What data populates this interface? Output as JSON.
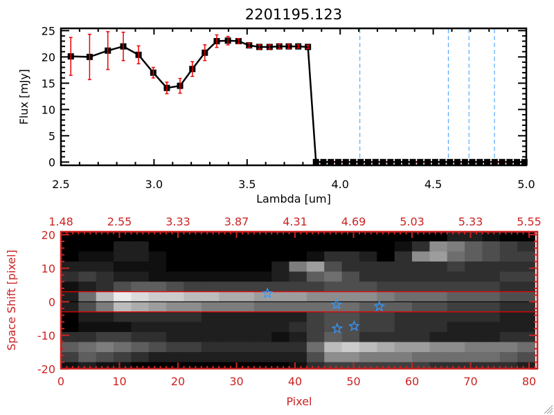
{
  "chart_data": [
    {
      "type": "line",
      "title": "2201195.123",
      "xlabel": "Lambda [um]",
      "ylabel": "Flux [mJy]",
      "xlim": [
        2.5,
        5.0
      ],
      "ylim": [
        -0.6,
        25.5
      ],
      "xticks": [
        "2.5",
        "3.0",
        "3.5",
        "4.0",
        "4.5",
        "5.0"
      ],
      "yticks": [
        "0",
        "5",
        "10",
        "15",
        "20",
        "25"
      ],
      "grid": false,
      "line_color": "#000000",
      "errorbar_color": "#ee0000",
      "series": [
        {
          "x": [
            2.553,
            2.654,
            2.752,
            2.835,
            2.917,
            2.996,
            3.069,
            3.14,
            3.206,
            3.273,
            3.337,
            3.397,
            3.454,
            3.511,
            3.566,
            3.621,
            3.673,
            3.724,
            3.775,
            3.827,
            3.87,
            3.91,
            3.95,
            3.99,
            4.03,
            4.07,
            4.11,
            4.15,
            4.19,
            4.23,
            4.27,
            4.31,
            4.35,
            4.39,
            4.43,
            4.47,
            4.51,
            4.55,
            4.59,
            4.63,
            4.67,
            4.71,
            4.75,
            4.79,
            4.83,
            4.87,
            4.91,
            4.95,
            4.99
          ],
          "y": [
            20.1,
            20.0,
            21.2,
            22.0,
            20.4,
            17.0,
            14.1,
            14.5,
            17.7,
            20.8,
            23.0,
            23.1,
            23.0,
            22.2,
            21.9,
            21.9,
            22.0,
            22.0,
            22.0,
            21.9,
            0,
            0,
            0,
            0,
            0,
            0,
            0,
            0,
            0,
            0,
            0,
            0,
            0,
            0,
            0,
            0,
            0,
            0,
            0,
            0,
            0,
            0,
            0,
            0,
            0,
            0,
            0,
            0,
            0
          ],
          "yerr": [
            3.6,
            4.3,
            3.6,
            2.7,
            1.7,
            1.0,
            1.1,
            1.4,
            1.4,
            1.5,
            1.2,
            0.8,
            0.5,
            0.4,
            0.4,
            0.4,
            0.4,
            0.4,
            0.3,
            0.3,
            0.1,
            0.1,
            0.1,
            0.1,
            0.1,
            0.1,
            0.1,
            0.1,
            0.1,
            0.1,
            0.1,
            0.1,
            0.1,
            0.1,
            0.1,
            0.1,
            0.1,
            0.1,
            0.1,
            0.1,
            0.1,
            0.1,
            0.1,
            0.1,
            0.1,
            0.1,
            0.1,
            0.1,
            0.1
          ]
        }
      ],
      "vlines": [
        4.106,
        4.581,
        4.692,
        4.829
      ],
      "vline_color": "#3399ff",
      "hline_dashed": {
        "y": 0,
        "from": 3.87,
        "to": 5.0,
        "color": "#ee0000"
      }
    },
    {
      "type": "heatmap",
      "xlabel": "Pixel",
      "ylabel": "Space Shift [pixel]",
      "xlim": [
        0,
        81.4
      ],
      "ylim": [
        -20,
        20.9
      ],
      "xticks": [
        "0",
        "10",
        "20",
        "30",
        "40",
        "50",
        "60",
        "70",
        "80"
      ],
      "top_xticks": [
        "1.48",
        "2.55",
        "3.33",
        "3.87",
        "4.31",
        "4.69",
        "5.03",
        "5.33",
        "5.55"
      ],
      "yticks": [
        "20",
        "10",
        "0",
        "-10",
        "-20"
      ],
      "axis_color": "#cc2222",
      "colormap": "gray",
      "intensity_rows_top_to_bottom": [
        "000000000000000000000022100",
        "000220000000000000013986543",
        "011221000000001332039a76544",
        "22211100000028a533333343333",
        "343221111111236753333333344",
        "123566544444444555444444433",
        "27cfeddccbbaaa9999877766655",
        "258cba998887777776665544433",
        "022333332222224554433333322",
        "011122222222234554433322222",
        "334433222222124653333222233",
        "678765443333337cdcbaa998887",
        "465432222222225998887777765",
        "121100000000013444444333332"
      ],
      "hlines": [
        {
          "y": 3,
          "color": "#ee0000"
        },
        {
          "y": 0,
          "color": "#000000"
        },
        {
          "y": -3,
          "color": "#ee0000"
        }
      ],
      "stars": [
        {
          "x": 35.3,
          "y": 2.5
        },
        {
          "x": 47.1,
          "y": -0.8
        },
        {
          "x": 54.4,
          "y": -1.4
        },
        {
          "x": 47.2,
          "y": -8.0
        },
        {
          "x": 50.1,
          "y": -7.3
        }
      ],
      "star_color": "#3399ff"
    }
  ]
}
